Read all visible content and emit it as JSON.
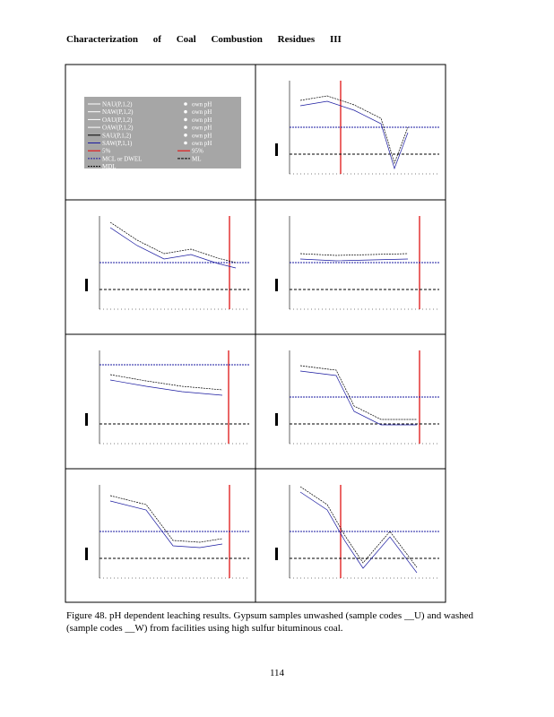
{
  "header": {
    "title": "Characterization of Coal Combustion Residues III"
  },
  "legend": {
    "entries": [
      "NAU(P,1,2)",
      "NAW(P,1,2)",
      "OAU(P,1,2)",
      "OAW(P,1,2)",
      "SAU(P,1,2)",
      "SAW(P,1,1)",
      "5%",
      "MCL or DWEL",
      "MDL"
    ],
    "own_ph": [
      "own pH",
      "own pH",
      "own pH",
      "own pH",
      "own pH",
      "own pH"
    ],
    "right": [
      "95%",
      "ML"
    ]
  },
  "caption": "Figure 48. pH dependent leaching results. Gypsum samples unwashed (sample codes __U) and washed (sample codes __W) from facilities using high sulfur bituminous coal.",
  "page_number": "114"
}
